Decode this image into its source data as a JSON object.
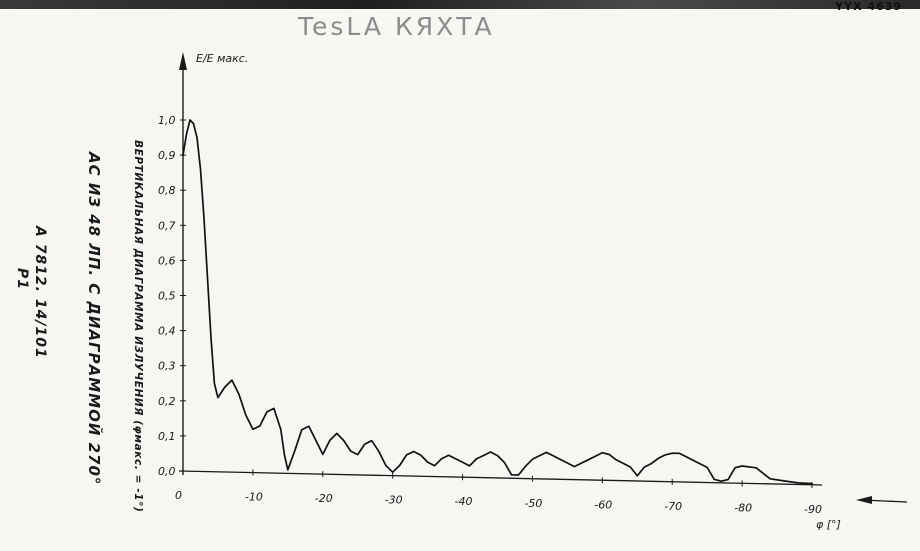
{
  "header": {
    "handwritten_title": "TesLA  КЯХТА",
    "corner_mark": "YYX 4639"
  },
  "side_labels": {
    "antenna": "АС ИЗ 48 ЛП. С ДИАГРАММОЙ 270°",
    "code": "А 7812. 14/101",
    "sheet": "Р1"
  },
  "chart_data": {
    "type": "line",
    "title": "",
    "xlabel": "φ [°]",
    "ylabel_top": "E/E макс.",
    "ylabel_side": "ВЕРТИКАЛЬНАЯ ДИАГРАММА ИЗЛУЧЕНИЯ (φмакс. = -1°)",
    "xlim": [
      0,
      -90
    ],
    "ylim": [
      0,
      1.0
    ],
    "x_ticks": [
      0,
      -10,
      -20,
      -30,
      -40,
      -50,
      -60,
      -70,
      -80,
      -90
    ],
    "x_tick_labels": [
      "0",
      "-10",
      "-20",
      "-30",
      "-40",
      "-50",
      "-60",
      "-70",
      "-80",
      "-90"
    ],
    "y_ticks": [
      0,
      0.1,
      0.2,
      0.3,
      0.4,
      0.5,
      0.6,
      0.7,
      0.8,
      0.9,
      1.0
    ],
    "y_tick_labels": [
      "0,0",
      "0,1",
      "0,2",
      "0,3",
      "0,4",
      "0,5",
      "0,6",
      "0,7",
      "0,8",
      "0,9",
      "1,0"
    ],
    "grid": false,
    "series": [
      {
        "x": [
          0,
          -0.5,
          -1,
          -1.5,
          -2,
          -2.5,
          -3,
          -3.5,
          -4,
          -4.5,
          -5,
          -6,
          -7,
          -8,
          -9,
          -10,
          -11,
          -12,
          -13,
          -14,
          -14.5,
          -15,
          -16,
          -17,
          -18,
          -19,
          -20,
          -21,
          -22,
          -23,
          -24,
          -25,
          -26,
          -27,
          -28,
          -29,
          -30,
          -31,
          -32,
          -33,
          -34,
          -35,
          -36,
          -37,
          -38,
          -39,
          -40,
          -41,
          -42,
          -43,
          -44,
          -45,
          -46,
          -47,
          -48,
          -49,
          -50,
          -51,
          -52,
          -53,
          -54,
          -55,
          -56,
          -57,
          -58,
          -59,
          -60,
          -61,
          -62,
          -63,
          -64,
          -65,
          -66,
          -67,
          -68,
          -69,
          -70,
          -71,
          -72,
          -73,
          -74,
          -75,
          -76,
          -77,
          -78,
          -79,
          -80,
          -82,
          -84,
          -86,
          -88,
          -90
        ],
        "y": [
          0.9,
          0.96,
          1.0,
          0.99,
          0.95,
          0.86,
          0.72,
          0.55,
          0.38,
          0.25,
          0.21,
          0.24,
          0.26,
          0.22,
          0.16,
          0.12,
          0.13,
          0.17,
          0.18,
          0.12,
          0.05,
          0.01,
          0.06,
          0.12,
          0.13,
          0.09,
          0.05,
          0.09,
          0.11,
          0.09,
          0.06,
          0.05,
          0.08,
          0.09,
          0.06,
          0.02,
          0.01,
          0.02,
          0.05,
          0.06,
          0.05,
          0.03,
          0.02,
          0.04,
          0.05,
          0.04,
          0.03,
          0.02,
          0.04,
          0.05,
          0.06,
          0.05,
          0.03,
          0.01,
          0.01,
          0.02,
          0.04,
          0.05,
          0.06,
          0.05,
          0.04,
          0.03,
          0.02,
          0.03,
          0.04,
          0.05,
          0.06,
          0.055,
          0.04,
          0.03,
          0.02,
          0.015,
          0.02,
          0.03,
          0.045,
          0.055,
          0.06,
          0.06,
          0.05,
          0.04,
          0.03,
          0.02,
          0.01,
          0.005,
          0.01,
          0.02,
          0.025,
          0.02,
          0.015,
          0.01,
          0.005,
          0.004
        ]
      }
    ]
  }
}
